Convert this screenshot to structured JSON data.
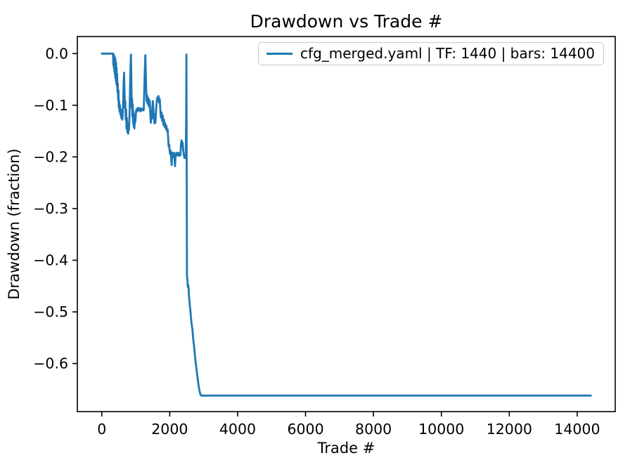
{
  "chart_data": {
    "type": "line",
    "title": "Drawdown vs Trade #",
    "xlabel": "Trade #",
    "ylabel": "Drawdown (fraction)",
    "grid": false,
    "legend_position": "upper right",
    "line_color": "#1f77b4",
    "legend": [
      {
        "label": "cfg_merged.yaml | TF: 1440 | bars: 14400",
        "color": "#1f77b4"
      }
    ],
    "xlim": [
      -720,
      15120
    ],
    "ylim": [
      -0.693,
      0.033
    ],
    "xticks": [
      {
        "v": 0,
        "label": "0"
      },
      {
        "v": 2000,
        "label": "2000"
      },
      {
        "v": 4000,
        "label": "4000"
      },
      {
        "v": 6000,
        "label": "6000"
      },
      {
        "v": 8000,
        "label": "8000"
      },
      {
        "v": 10000,
        "label": "10000"
      },
      {
        "v": 12000,
        "label": "12000"
      },
      {
        "v": 14000,
        "label": "14000"
      }
    ],
    "yticks": [
      {
        "v": 0.0,
        "label": "0.0"
      },
      {
        "v": -0.1,
        "label": "−0.1"
      },
      {
        "v": -0.2,
        "label": "−0.2"
      },
      {
        "v": -0.3,
        "label": "−0.3"
      },
      {
        "v": -0.4,
        "label": "−0.4"
      },
      {
        "v": -0.5,
        "label": "−0.5"
      },
      {
        "v": -0.6,
        "label": "−0.6"
      }
    ],
    "series": [
      {
        "name": "cfg_merged.yaml | TF: 1440 | bars: 14400",
        "points": [
          [
            0,
            0
          ],
          [
            330,
            0
          ],
          [
            340,
            -0.022
          ],
          [
            348,
            -0.002
          ],
          [
            356,
            -0.028
          ],
          [
            362,
            -0.004
          ],
          [
            370,
            -0.034
          ],
          [
            376,
            -0.006
          ],
          [
            384,
            -0.04
          ],
          [
            390,
            -0.008
          ],
          [
            398,
            -0.046
          ],
          [
            404,
            -0.012
          ],
          [
            412,
            -0.052
          ],
          [
            420,
            -0.018
          ],
          [
            428,
            -0.058
          ],
          [
            436,
            -0.028
          ],
          [
            444,
            -0.062
          ],
          [
            452,
            -0.04
          ],
          [
            462,
            -0.075
          ],
          [
            472,
            -0.058
          ],
          [
            482,
            -0.09
          ],
          [
            492,
            -0.072
          ],
          [
            502,
            -0.105
          ],
          [
            512,
            -0.092
          ],
          [
            522,
            -0.112
          ],
          [
            535,
            -0.1
          ],
          [
            548,
            -0.118
          ],
          [
            562,
            -0.108
          ],
          [
            576,
            -0.125
          ],
          [
            590,
            -0.112
          ],
          [
            604,
            -0.128
          ],
          [
            618,
            -0.118
          ],
          [
            632,
            -0.085
          ],
          [
            645,
            -0.055
          ],
          [
            656,
            -0.037
          ],
          [
            668,
            -0.07
          ],
          [
            680,
            -0.105
          ],
          [
            692,
            -0.092
          ],
          [
            704,
            -0.128
          ],
          [
            716,
            -0.108
          ],
          [
            728,
            -0.145
          ],
          [
            740,
            -0.125
          ],
          [
            752,
            -0.152
          ],
          [
            764,
            -0.135
          ],
          [
            776,
            -0.155
          ],
          [
            788,
            -0.14
          ],
          [
            800,
            -0.148
          ],
          [
            812,
            -0.128
          ],
          [
            824,
            -0.095
          ],
          [
            836,
            -0.055
          ],
          [
            850,
            -0.018
          ],
          [
            858,
            -0.002
          ],
          [
            866,
            -0.03
          ],
          [
            874,
            -0.065
          ],
          [
            882,
            -0.105
          ],
          [
            892,
            -0.088
          ],
          [
            902,
            -0.122
          ],
          [
            912,
            -0.098
          ],
          [
            922,
            -0.135
          ],
          [
            932,
            -0.112
          ],
          [
            942,
            -0.142
          ],
          [
            952,
            -0.118
          ],
          [
            962,
            -0.145
          ],
          [
            975,
            -0.125
          ],
          [
            990,
            -0.132
          ],
          [
            1005,
            -0.115
          ],
          [
            1020,
            -0.108
          ],
          [
            1040,
            -0.112
          ],
          [
            1060,
            -0.105
          ],
          [
            1085,
            -0.11
          ],
          [
            1110,
            -0.106
          ],
          [
            1135,
            -0.112
          ],
          [
            1160,
            -0.106
          ],
          [
            1185,
            -0.11
          ],
          [
            1210,
            -0.107
          ],
          [
            1235,
            -0.11
          ],
          [
            1252,
            -0.07
          ],
          [
            1268,
            -0.03
          ],
          [
            1282,
            -0.003
          ],
          [
            1295,
            -0.035
          ],
          [
            1308,
            -0.07
          ],
          [
            1320,
            -0.092
          ],
          [
            1332,
            -0.08
          ],
          [
            1345,
            -0.096
          ],
          [
            1358,
            -0.085
          ],
          [
            1372,
            -0.1
          ],
          [
            1386,
            -0.088
          ],
          [
            1400,
            -0.104
          ],
          [
            1415,
            -0.092
          ],
          [
            1430,
            -0.118
          ],
          [
            1445,
            -0.134
          ],
          [
            1460,
            -0.112
          ],
          [
            1475,
            -0.126
          ],
          [
            1490,
            -0.104
          ],
          [
            1505,
            -0.092
          ],
          [
            1520,
            -0.108
          ],
          [
            1535,
            -0.125
          ],
          [
            1550,
            -0.135
          ],
          [
            1565,
            -0.118
          ],
          [
            1580,
            -0.134
          ],
          [
            1598,
            -0.112
          ],
          [
            1616,
            -0.095
          ],
          [
            1634,
            -0.085
          ],
          [
            1652,
            -0.09
          ],
          [
            1670,
            -0.082
          ],
          [
            1688,
            -0.095
          ],
          [
            1706,
            -0.088
          ],
          [
            1724,
            -0.108
          ],
          [
            1742,
            -0.124
          ],
          [
            1760,
            -0.114
          ],
          [
            1778,
            -0.13
          ],
          [
            1796,
            -0.12
          ],
          [
            1814,
            -0.138
          ],
          [
            1832,
            -0.128
          ],
          [
            1850,
            -0.142
          ],
          [
            1868,
            -0.135
          ],
          [
            1886,
            -0.146
          ],
          [
            1904,
            -0.14
          ],
          [
            1922,
            -0.15
          ],
          [
            1940,
            -0.147
          ],
          [
            1955,
            -0.165
          ],
          [
            1970,
            -0.18
          ],
          [
            1985,
            -0.176
          ],
          [
            2000,
            -0.19
          ],
          [
            2015,
            -0.195
          ],
          [
            2030,
            -0.188
          ],
          [
            2045,
            -0.205
          ],
          [
            2058,
            -0.216
          ],
          [
            2070,
            -0.198
          ],
          [
            2085,
            -0.192
          ],
          [
            2105,
            -0.2
          ],
          [
            2125,
            -0.192
          ],
          [
            2145,
            -0.208
          ],
          [
            2158,
            -0.218
          ],
          [
            2172,
            -0.198
          ],
          [
            2195,
            -0.192
          ],
          [
            2220,
            -0.197
          ],
          [
            2245,
            -0.192
          ],
          [
            2270,
            -0.198
          ],
          [
            2295,
            -0.193
          ],
          [
            2315,
            -0.197
          ],
          [
            2332,
            -0.176
          ],
          [
            2348,
            -0.168
          ],
          [
            2364,
            -0.18
          ],
          [
            2380,
            -0.172
          ],
          [
            2396,
            -0.186
          ],
          [
            2414,
            -0.196
          ],
          [
            2434,
            -0.202
          ],
          [
            2454,
            -0.197
          ],
          [
            2472,
            -0.202
          ],
          [
            2486,
            -0.12
          ],
          [
            2492,
            -0.002
          ],
          [
            2498,
            -0.15
          ],
          [
            2503,
            -0.32
          ],
          [
            2508,
            -0.43
          ],
          [
            2520,
            -0.438
          ],
          [
            2535,
            -0.452
          ],
          [
            2550,
            -0.448
          ],
          [
            2565,
            -0.468
          ],
          [
            2580,
            -0.478
          ],
          [
            2595,
            -0.49
          ],
          [
            2610,
            -0.497
          ],
          [
            2625,
            -0.51
          ],
          [
            2640,
            -0.52
          ],
          [
            2655,
            -0.528
          ],
          [
            2672,
            -0.535
          ],
          [
            2690,
            -0.552
          ],
          [
            2708,
            -0.562
          ],
          [
            2726,
            -0.572
          ],
          [
            2744,
            -0.585
          ],
          [
            2762,
            -0.597
          ],
          [
            2780,
            -0.606
          ],
          [
            2798,
            -0.616
          ],
          [
            2816,
            -0.625
          ],
          [
            2834,
            -0.634
          ],
          [
            2852,
            -0.643
          ],
          [
            2870,
            -0.65
          ],
          [
            2888,
            -0.656
          ],
          [
            2906,
            -0.66
          ],
          [
            2925,
            -0.662
          ],
          [
            3000,
            -0.662
          ],
          [
            14400,
            -0.662
          ]
        ]
      }
    ]
  }
}
